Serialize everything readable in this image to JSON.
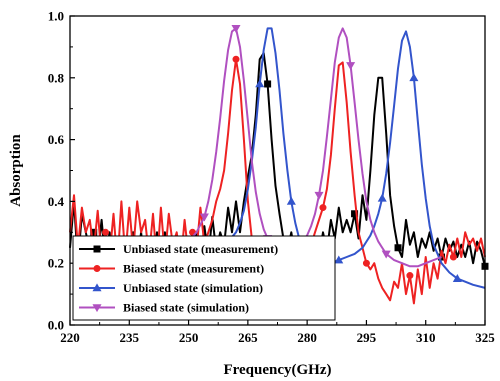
{
  "chart_data": {
    "type": "line",
    "xlabel": "Frequency(GHz)",
    "ylabel": "Absorption",
    "xlim": [
      220,
      325
    ],
    "ylim": [
      0.0,
      1.0
    ],
    "x_ticks": [
      "220",
      "235",
      "250",
      "265",
      "280",
      "295",
      "310",
      "325"
    ],
    "y_ticks": [
      "0.0",
      "0.2",
      "0.4",
      "0.6",
      "0.8",
      "1.0"
    ],
    "grid": false,
    "legend_position": "bottom-left",
    "series": [
      {
        "name": "Unbiased state (measurement)",
        "color": "#000000",
        "marker": "square",
        "x": [
          220,
          221,
          222,
          223,
          224,
          225,
          226,
          227,
          228,
          229,
          230,
          231,
          232,
          233,
          234,
          235,
          236,
          237,
          238,
          239,
          240,
          241,
          242,
          243,
          244,
          245,
          246,
          247,
          248,
          249,
          250,
          251,
          252,
          253,
          254,
          255,
          256,
          257,
          258,
          259,
          260,
          261,
          262,
          263,
          264,
          265,
          266,
          267,
          268,
          269,
          270,
          271,
          272,
          273,
          274,
          275,
          276,
          277,
          278,
          279,
          280,
          281,
          282,
          283,
          284,
          285,
          286,
          287,
          288,
          289,
          290,
          291,
          292,
          293,
          294,
          295,
          296,
          297,
          298,
          299,
          300,
          301,
          302,
          303,
          304,
          305,
          306,
          307,
          308,
          309,
          310,
          311,
          312,
          313,
          314,
          315,
          316,
          317,
          318,
          319,
          320,
          321,
          322,
          323,
          324,
          325
        ],
        "y": [
          0.25,
          0.4,
          0.2,
          0.36,
          0.3,
          0.24,
          0.3,
          0.22,
          0.34,
          0.2,
          0.3,
          0.22,
          0.28,
          0.18,
          0.26,
          0.18,
          0.3,
          0.2,
          0.3,
          0.18,
          0.26,
          0.2,
          0.3,
          0.2,
          0.3,
          0.22,
          0.28,
          0.2,
          0.26,
          0.2,
          0.25,
          0.22,
          0.3,
          0.2,
          0.32,
          0.22,
          0.35,
          0.24,
          0.3,
          0.26,
          0.38,
          0.3,
          0.4,
          0.3,
          0.4,
          0.48,
          0.55,
          0.68,
          0.86,
          0.88,
          0.78,
          0.6,
          0.45,
          0.36,
          0.28,
          0.24,
          0.3,
          0.22,
          0.26,
          0.2,
          0.26,
          0.22,
          0.28,
          0.22,
          0.3,
          0.24,
          0.34,
          0.28,
          0.38,
          0.3,
          0.34,
          0.3,
          0.36,
          0.28,
          0.42,
          0.34,
          0.5,
          0.68,
          0.8,
          0.8,
          0.62,
          0.42,
          0.32,
          0.25,
          0.22,
          0.34,
          0.26,
          0.3,
          0.22,
          0.28,
          0.25,
          0.3,
          0.24,
          0.28,
          0.22,
          0.28,
          0.24,
          0.27,
          0.22,
          0.26,
          0.22,
          0.27,
          0.2,
          0.27,
          0.24,
          0.19
        ]
      },
      {
        "name": "Biased state (measurement)",
        "color": "#ee2222",
        "marker": "circle",
        "x": [
          220,
          221,
          222,
          223,
          224,
          225,
          226,
          227,
          228,
          229,
          230,
          231,
          232,
          233,
          234,
          235,
          236,
          237,
          238,
          239,
          240,
          241,
          242,
          243,
          244,
          245,
          246,
          247,
          248,
          249,
          250,
          251,
          252,
          253,
          254,
          255,
          256,
          257,
          258,
          259,
          260,
          261,
          262,
          263,
          264,
          265,
          266,
          267,
          268,
          269,
          270,
          271,
          272,
          273,
          274,
          275,
          276,
          277,
          278,
          279,
          280,
          281,
          282,
          283,
          284,
          285,
          286,
          287,
          288,
          289,
          290,
          291,
          292,
          293,
          294,
          295,
          296,
          297,
          298,
          299,
          300,
          301,
          302,
          303,
          304,
          305,
          306,
          307,
          308,
          309,
          310,
          311,
          312,
          313,
          314,
          315,
          316,
          317,
          318,
          319,
          320,
          321,
          322,
          323,
          324,
          325
        ],
        "y": [
          0.3,
          0.42,
          0.25,
          0.38,
          0.3,
          0.34,
          0.24,
          0.37,
          0.22,
          0.3,
          0.22,
          0.36,
          0.2,
          0.4,
          0.22,
          0.38,
          0.24,
          0.4,
          0.3,
          0.34,
          0.22,
          0.36,
          0.2,
          0.38,
          0.22,
          0.36,
          0.26,
          0.3,
          0.2,
          0.34,
          0.22,
          0.3,
          0.24,
          0.38,
          0.26,
          0.3,
          0.34,
          0.4,
          0.44,
          0.5,
          0.62,
          0.76,
          0.86,
          0.78,
          0.6,
          0.4,
          0.28,
          0.22,
          0.2,
          0.25,
          0.2,
          0.18,
          0.24,
          0.2,
          0.22,
          0.2,
          0.24,
          0.2,
          0.26,
          0.22,
          0.28,
          0.26,
          0.3,
          0.34,
          0.38,
          0.44,
          0.55,
          0.7,
          0.84,
          0.85,
          0.72,
          0.56,
          0.42,
          0.3,
          0.25,
          0.2,
          0.18,
          0.2,
          0.15,
          0.12,
          0.1,
          0.08,
          0.14,
          0.12,
          0.2,
          0.1,
          0.16,
          0.07,
          0.18,
          0.1,
          0.22,
          0.12,
          0.2,
          0.15,
          0.24,
          0.2,
          0.26,
          0.22,
          0.28,
          0.22,
          0.3,
          0.26,
          0.28,
          0.24,
          0.28,
          0.22
        ]
      },
      {
        "name": "Unbiased state (simulation)",
        "color": "#3355cc",
        "marker": "triangle",
        "x": [
          250,
          252,
          254,
          256,
          258,
          260,
          262,
          263,
          264,
          265,
          266,
          267,
          268,
          269,
          270,
          271,
          272,
          273,
          274,
          275,
          276,
          277,
          278,
          279,
          280,
          282,
          284,
          286,
          288,
          290,
          292,
          294,
          295,
          296,
          297,
          298,
          299,
          300,
          301,
          302,
          303,
          304,
          305,
          306,
          307,
          308,
          309,
          310,
          311,
          312,
          314,
          316,
          318,
          320,
          322,
          325
        ],
        "y": [
          0.22,
          0.22,
          0.23,
          0.24,
          0.25,
          0.27,
          0.3,
          0.33,
          0.37,
          0.44,
          0.53,
          0.64,
          0.78,
          0.89,
          0.96,
          0.96,
          0.88,
          0.76,
          0.62,
          0.5,
          0.4,
          0.33,
          0.28,
          0.25,
          0.23,
          0.21,
          0.2,
          0.2,
          0.21,
          0.22,
          0.23,
          0.25,
          0.27,
          0.29,
          0.32,
          0.36,
          0.41,
          0.49,
          0.59,
          0.71,
          0.83,
          0.92,
          0.95,
          0.9,
          0.8,
          0.66,
          0.52,
          0.41,
          0.32,
          0.26,
          0.2,
          0.17,
          0.15,
          0.14,
          0.13,
          0.12
        ]
      },
      {
        "name": "Biased state (simulation)",
        "color": "#b050c0",
        "marker": "triangle-down",
        "x": [
          240,
          244,
          248,
          250,
          252,
          254,
          255,
          256,
          257,
          258,
          259,
          260,
          261,
          262,
          263,
          264,
          265,
          266,
          267,
          268,
          269,
          270,
          272,
          274,
          276,
          278,
          280,
          281,
          282,
          283,
          284,
          285,
          286,
          287,
          288,
          289,
          290,
          291,
          292,
          293,
          294,
          295,
          296,
          297,
          298,
          300,
          302,
          304,
          306,
          308,
          310,
          312,
          314
        ],
        "y": [
          0.22,
          0.23,
          0.25,
          0.27,
          0.3,
          0.35,
          0.4,
          0.47,
          0.56,
          0.67,
          0.79,
          0.89,
          0.95,
          0.96,
          0.9,
          0.79,
          0.66,
          0.53,
          0.43,
          0.36,
          0.31,
          0.28,
          0.25,
          0.24,
          0.24,
          0.26,
          0.29,
          0.32,
          0.36,
          0.42,
          0.5,
          0.61,
          0.73,
          0.85,
          0.93,
          0.96,
          0.93,
          0.84,
          0.72,
          0.6,
          0.49,
          0.4,
          0.34,
          0.3,
          0.27,
          0.23,
          0.21,
          0.2,
          0.19,
          0.19,
          0.2,
          0.21,
          0.22
        ]
      }
    ]
  }
}
